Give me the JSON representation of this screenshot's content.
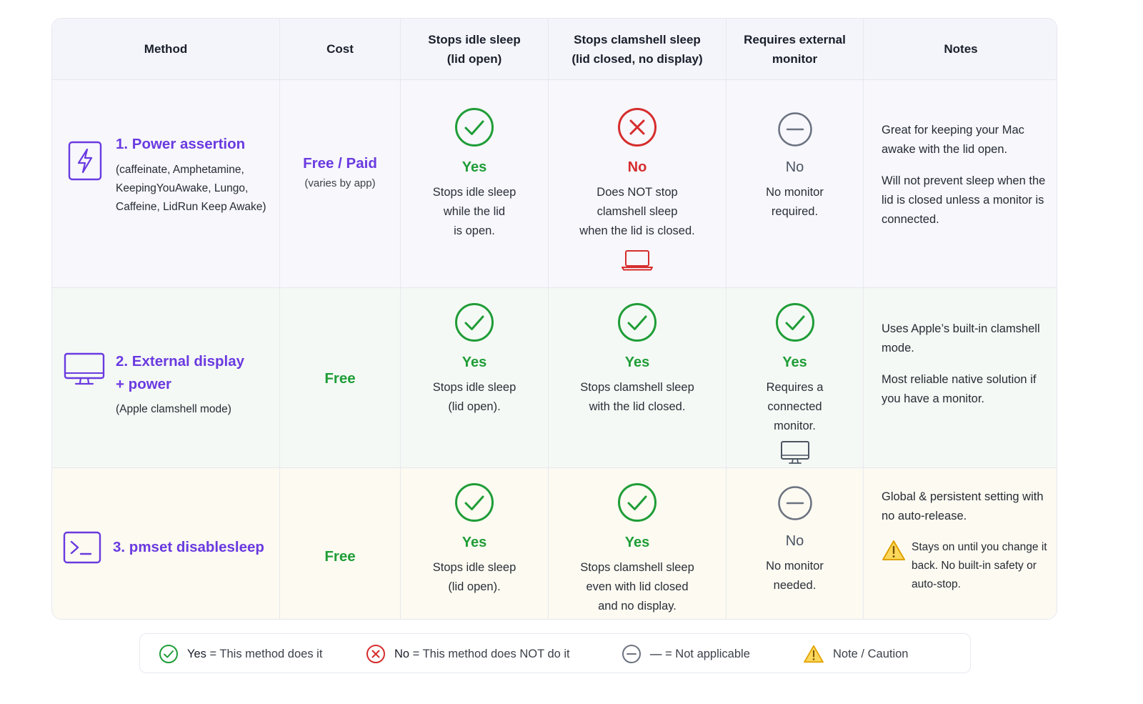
{
  "header": {
    "method": "Method",
    "cost": "Cost",
    "idle": "Stops idle sleep\n(lid open)",
    "clamshell": "Stops clamshell sleep\n(lid closed, no display)",
    "monitor": "Requires external\nmonitor",
    "notes": "Notes"
  },
  "rows": [
    {
      "title": "1. Power assertion",
      "subtitle": "(caffeinate, Amphetamine,\nKeepingYouAwake, Lungo,\nCaffeine, LidRun Keep Awake)",
      "method_icon": "lightning-bolt-icon",
      "cost": "Free / Paid",
      "cost_note": "(varies by app)",
      "idle": {
        "status": "Yes",
        "desc": "Stops idle sleep\nwhile the lid\nis open."
      },
      "clamshell": {
        "status": "No",
        "desc": "Does NOT stop\nclamshell sleep\nwhen the lid is closed.",
        "icon": "laptop-icon"
      },
      "monitor": {
        "status": "No",
        "desc": "No monitor\nrequired."
      },
      "notes": [
        "Great for keeping your Mac awake with the lid open.",
        "Will not prevent sleep when the lid is closed unless a monitor is connected."
      ]
    },
    {
      "title": "2. External display\n+ power",
      "subtitle": "(Apple clamshell mode)",
      "method_icon": "monitor-icon",
      "cost": "Free",
      "idle": {
        "status": "Yes",
        "desc": "Stops idle sleep\n(lid open)."
      },
      "clamshell": {
        "status": "Yes",
        "desc": "Stops clamshell sleep\nwith the lid closed."
      },
      "monitor": {
        "status": "Yes",
        "desc": "Requires a\nconnected\nmonitor.",
        "icon": "monitor-icon"
      },
      "notes": [
        "Uses Apple’s built-in clamshell mode.",
        "Most reliable native solution if you have a monitor."
      ]
    },
    {
      "title": "3. pmset disablesleep",
      "method_icon": "terminal-icon",
      "cost": "Free",
      "idle": {
        "status": "Yes",
        "desc": "Stops idle sleep\n(lid open)."
      },
      "clamshell": {
        "status": "Yes",
        "desc": "Stops clamshell sleep\neven with lid closed\nand no display."
      },
      "monitor": {
        "status": "No",
        "desc": "No monitor\nneeded."
      },
      "notes": [
        "Global & persistent setting with no auto-release."
      ],
      "caution": "Stays on until you change it back. No built-in safety or auto-stop."
    }
  ],
  "legend": {
    "yes_key": "Yes",
    "yes_text": " = This method does it",
    "no_key": "No",
    "no_text": " = This method does NOT do it",
    "na_key": "—",
    "na_text": " = Not applicable",
    "note_text": "Note / Caution"
  },
  "colors": {
    "yes": "#1f9d37",
    "no": "#d62d2d",
    "accent": "#6a3ae0",
    "neutral": "#6b7280",
    "caution": "#f2b705"
  }
}
